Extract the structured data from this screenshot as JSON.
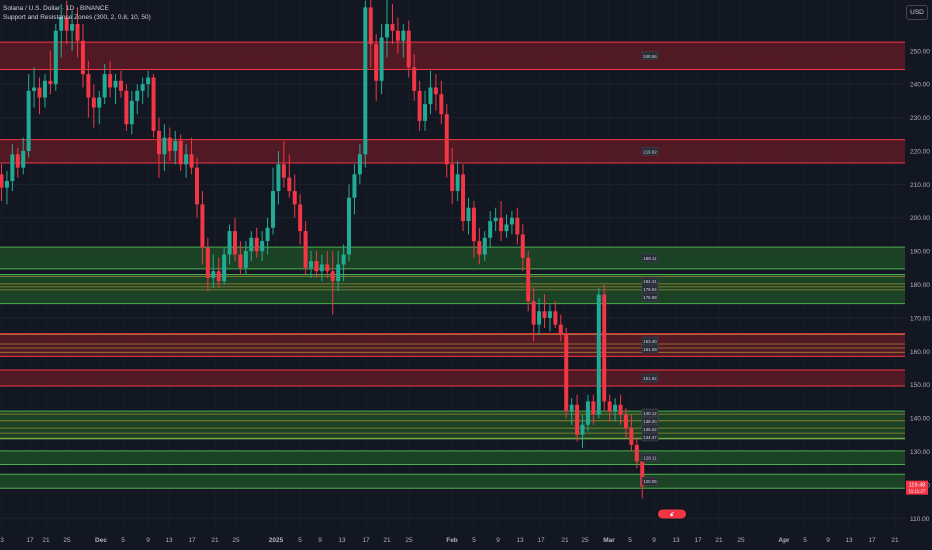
{
  "legend": {
    "symbol": "Solana / U.S. Dollar · 1D · BINANCE",
    "indicator": "Support and Resistance Zones (300, 2, 0.8, 10, 50)"
  },
  "currency_button": "USD",
  "colors": {
    "background": "#131722",
    "up": "#22ab94",
    "down": "#f23645",
    "resistance_fill": "#5c1a24",
    "resistance_line": "#f23645",
    "support_fill": "#1f4a26",
    "support_line": "#4caf50",
    "orange_line": "#c9a13b"
  },
  "chart_data": {
    "type": "candlestick",
    "symbol": "Solana / U.S. Dollar",
    "interval": "1D",
    "exchange": "BINANCE",
    "y_axis": {
      "ticks": [
        110,
        120,
        130,
        140,
        150,
        160,
        170,
        180,
        190,
        200,
        210,
        220,
        230,
        240,
        250
      ],
      "tick_labels": [
        "110.00",
        "120.00",
        "130.00",
        "140.00",
        "150.00",
        "160.00",
        "170.00",
        "180.00",
        "190.00",
        "200.00",
        "210.00",
        "220.00",
        "230.00",
        "240.00",
        "250.00"
      ],
      "range": [
        106.5,
        265.2
      ]
    },
    "x_axis": {
      "tick_labels": [
        "3",
        "17",
        "21",
        "25",
        "Dec",
        "5",
        "9",
        "13",
        "17",
        "21",
        "25",
        "2025",
        "5",
        "9",
        "13",
        "17",
        "21",
        "25",
        "Feb",
        "5",
        "9",
        "13",
        "17",
        "21",
        "25",
        "Mar",
        "5",
        "9",
        "13",
        "17",
        "21",
        "25",
        "Apr",
        "5",
        "9",
        "13",
        "17",
        "21"
      ],
      "tick_bold": [
        false,
        false,
        false,
        false,
        true,
        false,
        false,
        false,
        false,
        false,
        false,
        true,
        false,
        false,
        false,
        false,
        false,
        false,
        true,
        false,
        false,
        false,
        false,
        false,
        false,
        true,
        false,
        false,
        false,
        false,
        false,
        false,
        true,
        false,
        false,
        false,
        false,
        false
      ]
    },
    "candles": [
      {
        "o": 213.0,
        "h": 216.0,
        "l": 205.0,
        "c": 209.0
      },
      {
        "o": 209.0,
        "h": 214.0,
        "l": 204.0,
        "c": 211.0
      },
      {
        "o": 211.0,
        "h": 222.0,
        "l": 208.0,
        "c": 219.0
      },
      {
        "o": 219.0,
        "h": 221.0,
        "l": 212.0,
        "c": 215.0
      },
      {
        "o": 215.0,
        "h": 224.0,
        "l": 213.0,
        "c": 220.0
      },
      {
        "o": 220.0,
        "h": 243.0,
        "l": 218.0,
        "c": 238.0
      },
      {
        "o": 238.0,
        "h": 245.0,
        "l": 233.0,
        "c": 239.0
      },
      {
        "o": 239.0,
        "h": 242.0,
        "l": 231.0,
        "c": 236.0
      },
      {
        "o": 236.0,
        "h": 243.0,
        "l": 233.0,
        "c": 241.0
      },
      {
        "o": 241.0,
        "h": 250.0,
        "l": 237.0,
        "c": 240.0
      },
      {
        "o": 240.0,
        "h": 258.0,
        "l": 238.0,
        "c": 256.0
      },
      {
        "o": 256.0,
        "h": 264.0,
        "l": 248.0,
        "c": 260.0
      },
      {
        "o": 260.0,
        "h": 265.0,
        "l": 252.0,
        "c": 256.0
      },
      {
        "o": 256.0,
        "h": 262.0,
        "l": 250.0,
        "c": 258.0
      },
      {
        "o": 258.0,
        "h": 263.0,
        "l": 248.0,
        "c": 253.0
      },
      {
        "o": 253.0,
        "h": 258.0,
        "l": 239.0,
        "c": 243.0
      },
      {
        "o": 243.0,
        "h": 247.0,
        "l": 230.0,
        "c": 236.0
      },
      {
        "o": 236.0,
        "h": 240.0,
        "l": 227.0,
        "c": 233.0
      },
      {
        "o": 233.0,
        "h": 238.0,
        "l": 228.0,
        "c": 236.0
      },
      {
        "o": 236.0,
        "h": 246.0,
        "l": 234.0,
        "c": 243.0
      },
      {
        "o": 243.0,
        "h": 247.0,
        "l": 236.0,
        "c": 239.0
      },
      {
        "o": 239.0,
        "h": 243.0,
        "l": 234.0,
        "c": 241.0
      },
      {
        "o": 241.0,
        "h": 244.0,
        "l": 236.0,
        "c": 238.0
      },
      {
        "o": 238.0,
        "h": 240.0,
        "l": 226.0,
        "c": 228.0
      },
      {
        "o": 228.0,
        "h": 238.0,
        "l": 225.0,
        "c": 235.0
      },
      {
        "o": 235.0,
        "h": 240.0,
        "l": 231.0,
        "c": 238.0
      },
      {
        "o": 238.0,
        "h": 242.0,
        "l": 234.0,
        "c": 240.0
      },
      {
        "o": 240.0,
        "h": 244.0,
        "l": 236.0,
        "c": 242.0
      },
      {
        "o": 242.0,
        "h": 243.0,
        "l": 224.0,
        "c": 226.0
      },
      {
        "o": 226.0,
        "h": 230.0,
        "l": 212.0,
        "c": 219.0
      },
      {
        "o": 219.0,
        "h": 228.0,
        "l": 214.0,
        "c": 224.0
      },
      {
        "o": 224.0,
        "h": 227.0,
        "l": 217.0,
        "c": 220.0
      },
      {
        "o": 220.0,
        "h": 226.0,
        "l": 216.0,
        "c": 223.0
      },
      {
        "o": 223.0,
        "h": 225.0,
        "l": 214.0,
        "c": 216.0
      },
      {
        "o": 216.0,
        "h": 222.0,
        "l": 212.0,
        "c": 219.0
      },
      {
        "o": 219.0,
        "h": 224.0,
        "l": 213.0,
        "c": 215.0
      },
      {
        "o": 215.0,
        "h": 218.0,
        "l": 200.0,
        "c": 204.0
      },
      {
        "o": 204.0,
        "h": 208.0,
        "l": 186.0,
        "c": 191.0
      },
      {
        "o": 191.0,
        "h": 194.0,
        "l": 178.0,
        "c": 182.0
      },
      {
        "o": 182.0,
        "h": 189.0,
        "l": 179.0,
        "c": 184.0
      },
      {
        "o": 184.0,
        "h": 188.0,
        "l": 179.0,
        "c": 181.0
      },
      {
        "o": 181.0,
        "h": 191.0,
        "l": 180.0,
        "c": 189.0
      },
      {
        "o": 189.0,
        "h": 198.0,
        "l": 186.0,
        "c": 196.0
      },
      {
        "o": 196.0,
        "h": 200.0,
        "l": 187.0,
        "c": 189.0
      },
      {
        "o": 189.0,
        "h": 193.0,
        "l": 183.0,
        "c": 185.0
      },
      {
        "o": 185.0,
        "h": 193.0,
        "l": 183.0,
        "c": 190.0
      },
      {
        "o": 190.0,
        "h": 196.0,
        "l": 187.0,
        "c": 194.0
      },
      {
        "o": 194.0,
        "h": 197.0,
        "l": 188.0,
        "c": 190.0
      },
      {
        "o": 190.0,
        "h": 196.0,
        "l": 187.0,
        "c": 193.0
      },
      {
        "o": 193.0,
        "h": 200.0,
        "l": 189.0,
        "c": 197.0
      },
      {
        "o": 197.0,
        "h": 215.0,
        "l": 195.0,
        "c": 208.0
      },
      {
        "o": 208.0,
        "h": 220.0,
        "l": 204.0,
        "c": 216.0
      },
      {
        "o": 216.0,
        "h": 223.0,
        "l": 209.0,
        "c": 212.0
      },
      {
        "o": 212.0,
        "h": 219.0,
        "l": 206.0,
        "c": 208.0
      },
      {
        "o": 208.0,
        "h": 213.0,
        "l": 200.0,
        "c": 204.0
      },
      {
        "o": 204.0,
        "h": 207.0,
        "l": 192.0,
        "c": 196.0
      },
      {
        "o": 196.0,
        "h": 199.0,
        "l": 183.0,
        "c": 185.0
      },
      {
        "o": 185.0,
        "h": 190.0,
        "l": 182.0,
        "c": 187.0
      },
      {
        "o": 187.0,
        "h": 190.0,
        "l": 182.0,
        "c": 184.0
      },
      {
        "o": 184.0,
        "h": 189.0,
        "l": 181.0,
        "c": 186.0
      },
      {
        "o": 186.0,
        "h": 190.0,
        "l": 182.0,
        "c": 184.0
      },
      {
        "o": 184.0,
        "h": 190.0,
        "l": 171.0,
        "c": 181.0
      },
      {
        "o": 181.0,
        "h": 190.0,
        "l": 178.0,
        "c": 186.0
      },
      {
        "o": 186.0,
        "h": 192.0,
        "l": 181.0,
        "c": 189.0
      },
      {
        "o": 189.0,
        "h": 210.0,
        "l": 187.0,
        "c": 206.0
      },
      {
        "o": 206.0,
        "h": 216.0,
        "l": 201.0,
        "c": 213.0
      },
      {
        "o": 213.0,
        "h": 222.0,
        "l": 210.0,
        "c": 219.0
      },
      {
        "o": 219.0,
        "h": 265.0,
        "l": 215.0,
        "c": 263.0
      },
      {
        "o": 263.0,
        "h": 266.0,
        "l": 245.0,
        "c": 252.0
      },
      {
        "o": 252.0,
        "h": 255.0,
        "l": 235.0,
        "c": 241.0
      },
      {
        "o": 241.0,
        "h": 258.0,
        "l": 237.0,
        "c": 254.0
      },
      {
        "o": 254.0,
        "h": 266.0,
        "l": 248.0,
        "c": 258.0
      },
      {
        "o": 258.0,
        "h": 264.0,
        "l": 252.0,
        "c": 256.0
      },
      {
        "o": 256.0,
        "h": 260.0,
        "l": 249.0,
        "c": 253.0
      },
      {
        "o": 253.0,
        "h": 258.0,
        "l": 248.0,
        "c": 256.0
      },
      {
        "o": 256.0,
        "h": 259.0,
        "l": 242.0,
        "c": 245.0
      },
      {
        "o": 245.0,
        "h": 249.0,
        "l": 235.0,
        "c": 238.0
      },
      {
        "o": 238.0,
        "h": 241.0,
        "l": 226.0,
        "c": 229.0
      },
      {
        "o": 229.0,
        "h": 238.0,
        "l": 226.0,
        "c": 234.0
      },
      {
        "o": 234.0,
        "h": 244.0,
        "l": 231.0,
        "c": 239.0
      },
      {
        "o": 239.0,
        "h": 243.0,
        "l": 232.0,
        "c": 237.0
      },
      {
        "o": 237.0,
        "h": 241.0,
        "l": 228.0,
        "c": 231.0
      },
      {
        "o": 231.0,
        "h": 234.0,
        "l": 212.0,
        "c": 216.0
      },
      {
        "o": 216.0,
        "h": 221.0,
        "l": 204.0,
        "c": 208.0
      },
      {
        "o": 208.0,
        "h": 217.0,
        "l": 205.0,
        "c": 213.0
      },
      {
        "o": 213.0,
        "h": 216.0,
        "l": 196.0,
        "c": 199.0
      },
      {
        "o": 199.0,
        "h": 206.0,
        "l": 195.0,
        "c": 203.0
      },
      {
        "o": 203.0,
        "h": 205.0,
        "l": 188.0,
        "c": 193.0
      },
      {
        "o": 193.0,
        "h": 197.0,
        "l": 186.0,
        "c": 189.0
      },
      {
        "o": 189.0,
        "h": 196.0,
        "l": 187.0,
        "c": 194.0
      },
      {
        "o": 194.0,
        "h": 202.0,
        "l": 191.0,
        "c": 199.0
      },
      {
        "o": 199.0,
        "h": 203.0,
        "l": 196.0,
        "c": 200.0
      },
      {
        "o": 200.0,
        "h": 205.0,
        "l": 193.0,
        "c": 196.0
      },
      {
        "o": 196.0,
        "h": 201.0,
        "l": 194.0,
        "c": 198.0
      },
      {
        "o": 198.0,
        "h": 202.0,
        "l": 195.0,
        "c": 200.0
      },
      {
        "o": 200.0,
        "h": 203.0,
        "l": 192.0,
        "c": 195.0
      },
      {
        "o": 195.0,
        "h": 198.0,
        "l": 184.0,
        "c": 188.0
      },
      {
        "o": 188.0,
        "h": 190.0,
        "l": 172.0,
        "c": 175.0
      },
      {
        "o": 175.0,
        "h": 179.0,
        "l": 163.0,
        "c": 168.0
      },
      {
        "o": 168.0,
        "h": 176.0,
        "l": 165.0,
        "c": 172.0
      },
      {
        "o": 172.0,
        "h": 177.0,
        "l": 167.0,
        "c": 170.0
      },
      {
        "o": 170.0,
        "h": 174.0,
        "l": 166.0,
        "c": 172.0
      },
      {
        "o": 172.0,
        "h": 175.0,
        "l": 167.0,
        "c": 168.0
      },
      {
        "o": 168.0,
        "h": 171.0,
        "l": 163.0,
        "c": 165.0
      },
      {
        "o": 165.0,
        "h": 167.0,
        "l": 140.0,
        "c": 142.0
      },
      {
        "o": 142.0,
        "h": 146.0,
        "l": 138.0,
        "c": 144.0
      },
      {
        "o": 144.0,
        "h": 147.0,
        "l": 133.0,
        "c": 135.0
      },
      {
        "o": 135.0,
        "h": 141.0,
        "l": 131.0,
        "c": 138.0
      },
      {
        "o": 138.0,
        "h": 147.0,
        "l": 136.0,
        "c": 145.0
      },
      {
        "o": 145.0,
        "h": 147.0,
        "l": 138.0,
        "c": 141.0
      },
      {
        "o": 141.0,
        "h": 179.0,
        "l": 140.0,
        "c": 177.0
      },
      {
        "o": 177.0,
        "h": 180.0,
        "l": 142.0,
        "c": 145.0
      },
      {
        "o": 145.0,
        "h": 147.0,
        "l": 139.0,
        "c": 142.0
      },
      {
        "o": 142.0,
        "h": 146.0,
        "l": 139.0,
        "c": 144.0
      },
      {
        "o": 144.0,
        "h": 147.0,
        "l": 138.0,
        "c": 141.0
      },
      {
        "o": 141.0,
        "h": 143.0,
        "l": 134.0,
        "c": 137.0
      },
      {
        "o": 137.0,
        "h": 141.0,
        "l": 130.0,
        "c": 132.0
      },
      {
        "o": 132.0,
        "h": 134.0,
        "l": 125.0,
        "c": 127.0
      },
      {
        "o": 127.0,
        "h": 128.0,
        "l": 116.0,
        "c": 119.5
      }
    ],
    "zones": [
      {
        "type": "resistance",
        "top": 252.6,
        "bottom": 244.4,
        "label": "248.56"
      },
      {
        "type": "resistance",
        "top": 223.4,
        "bottom": 216.4,
        "label": "219.92"
      },
      {
        "type": "support",
        "top": 191.2,
        "bottom": 184.7,
        "label": "188.11"
      },
      {
        "type": "support",
        "top": 183.0,
        "bottom": 174.3,
        "label": "182.41 · 179.94 · 176.08"
      },
      {
        "type": "resistance",
        "top": 165.3,
        "bottom": 158.5,
        "label": "163.40 · 161.09"
      },
      {
        "type": "resistance",
        "top": 154.4,
        "bottom": 149.6,
        "label": "151.92"
      },
      {
        "type": "support",
        "top": 142.1,
        "bottom": 133.8,
        "label": "140.12 · 138.20 · 136.02 · 134.47"
      },
      {
        "type": "support",
        "top": 130.2,
        "bottom": 126.1,
        "label": "128.11"
      },
      {
        "type": "support",
        "top": 123.2,
        "bottom": 119.0,
        "label": "120.05"
      }
    ],
    "orange_levels": [
      182.4,
      180.2,
      179.3,
      178.4,
      165.0,
      162.2,
      161.0,
      159.7,
      141.2,
      139.2,
      137.0,
      135.5,
      134.0
    ],
    "last_price": {
      "value": 119.48,
      "label": "119.48",
      "sub_label": "11:11:27"
    },
    "bottom_marker": {
      "label": "ꗃ"
    }
  }
}
